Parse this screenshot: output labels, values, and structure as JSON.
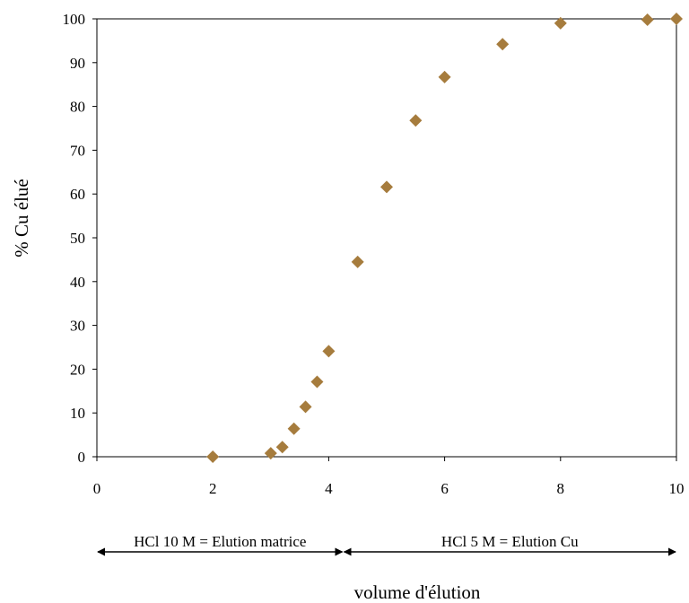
{
  "chart_data": {
    "type": "scatter",
    "title": "",
    "xlabel": "volume d'élution",
    "ylabel": "% Cu élué",
    "xlim": [
      0,
      10
    ],
    "ylim": [
      0,
      100
    ],
    "x_ticks": [
      0,
      2,
      4,
      6,
      8,
      10
    ],
    "y_ticks": [
      0,
      10,
      20,
      30,
      40,
      50,
      60,
      70,
      80,
      90,
      100
    ],
    "grid": false,
    "marker": "diamond",
    "series": [
      {
        "color": "#A67C3D",
        "points": [
          {
            "x": 2,
            "y": 0
          },
          {
            "x": 3,
            "y": 0.8
          },
          {
            "x": 3.2,
            "y": 2.2
          },
          {
            "x": 3.4,
            "y": 6.4
          },
          {
            "x": 3.6,
            "y": 11.4
          },
          {
            "x": 3.8,
            "y": 17.1
          },
          {
            "x": 4,
            "y": 24.1
          },
          {
            "x": 4.5,
            "y": 44.5
          },
          {
            "x": 5,
            "y": 61.6
          },
          {
            "x": 5.5,
            "y": 76.8
          },
          {
            "x": 6,
            "y": 86.7
          },
          {
            "x": 7,
            "y": 94.2
          },
          {
            "x": 8,
            "y": 99.0
          },
          {
            "x": 9.5,
            "y": 99.8
          },
          {
            "x": 10,
            "y": 100
          }
        ]
      }
    ],
    "annotations": [
      {
        "text": "HCl 10 M = Elution matrice",
        "x_from": 0,
        "x_to": 4.25
      },
      {
        "text": "HCl 5 M = Elution Cu",
        "x_from": 4.25,
        "x_to": 10
      }
    ]
  }
}
